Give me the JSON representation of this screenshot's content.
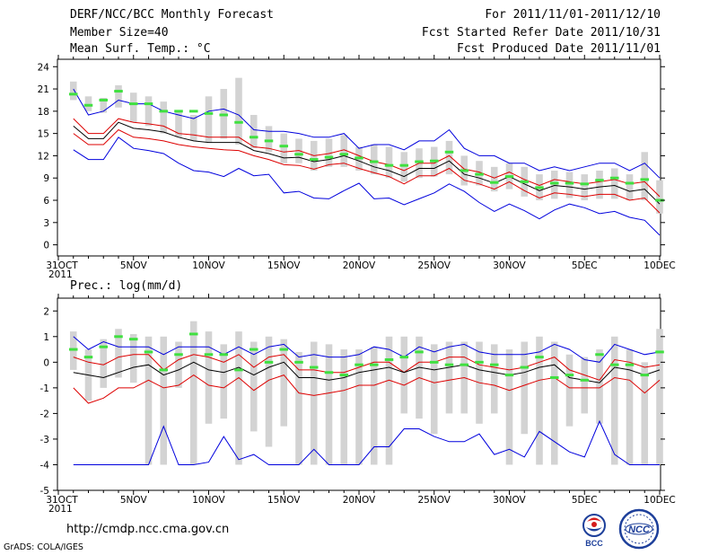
{
  "header": {
    "title": "DERF/NCC/BCC Monthly Forecast",
    "member_size": "Member Size=40",
    "variable": "Mean Surf. Temp.: °C",
    "period": "For 2011/11/01-2011/12/10",
    "fcst_started": "Fcst Started Refer Date 2011/10/31",
    "fcst_produced": "Fcst Produced Date 2011/11/01"
  },
  "footer": {
    "url": "http://cmdp.ncc.cma.gov.cn",
    "grads": "GrADS: COLA/IGES",
    "logo_bcc": "BCC",
    "logo_ncc": "NCC"
  },
  "colors": {
    "box": "#d3d3d3",
    "obs": "#40e040",
    "ens_max": "#0000dd",
    "ens_min": "#0000dd",
    "upper": "#dd0000",
    "lower": "#dd0000",
    "mean": "#000000"
  },
  "chart_data": [
    {
      "type": "line",
      "title": "Mean Surf. Temp.: °C",
      "x_tick_labels": [
        "31OCT",
        "5NOV",
        "10NOV",
        "15NOV",
        "20NOV",
        "25NOV",
        "30NOV",
        "5DEC",
        "10DEC"
      ],
      "x_year_label": "2011",
      "x_tick_days": [
        0,
        5,
        10,
        15,
        20,
        25,
        30,
        35,
        40
      ],
      "x_range": [
        0,
        40
      ],
      "ylim": [
        -1.5,
        25
      ],
      "y_ticks": [
        0,
        3,
        6,
        9,
        12,
        15,
        18,
        21,
        24
      ],
      "x": [
        1,
        2,
        3,
        4,
        5,
        6,
        7,
        8,
        9,
        10,
        11,
        12,
        13,
        14,
        15,
        16,
        17,
        18,
        19,
        20,
        21,
        22,
        23,
        24,
        25,
        26,
        27,
        28,
        29,
        30,
        31,
        32,
        33,
        34,
        35,
        36,
        37,
        38,
        39,
        40
      ],
      "series": [
        {
          "name": "ensemble max",
          "values": [
            21,
            17.5,
            18,
            19.5,
            19,
            19,
            18,
            17.5,
            17,
            18,
            18.3,
            17.5,
            15.5,
            15.3,
            15.3,
            15,
            14.5,
            14.5,
            15,
            13,
            13.5,
            13.5,
            12.8,
            14,
            14,
            15.5,
            13,
            12,
            12,
            11,
            11,
            10,
            10.5,
            10,
            10.5,
            11,
            11,
            10,
            11,
            9
          ]
        },
        {
          "name": "upper",
          "values": [
            17,
            15,
            15,
            17,
            16.5,
            16.3,
            16,
            15,
            14.8,
            14.5,
            14.5,
            14.5,
            13.2,
            13,
            12.5,
            12.7,
            12,
            12.3,
            12.8,
            12,
            11.2,
            10.8,
            10,
            11,
            11,
            12,
            10.2,
            9.8,
            9,
            9.8,
            8.8,
            8,
            8.8,
            8.5,
            8.2,
            8.5,
            8.8,
            8.2,
            8.5,
            6.5
          ]
        },
        {
          "name": "ensemble mean",
          "values": [
            16,
            14.3,
            14.3,
            16.5,
            15.7,
            15.5,
            15.2,
            14.5,
            14,
            13.8,
            13.8,
            13.8,
            12.7,
            12.3,
            11.7,
            11.8,
            11.2,
            11.5,
            12,
            11.3,
            10.5,
            10,
            9.2,
            10.3,
            10.3,
            11.3,
            9.5,
            9,
            8.3,
            9.2,
            8.2,
            7.3,
            8,
            7.8,
            7.5,
            7.8,
            8,
            7.2,
            7.5,
            5.5
          ]
        },
        {
          "name": "lower",
          "values": [
            15,
            13.5,
            13.5,
            15.5,
            14.5,
            14.3,
            14,
            13.5,
            13.2,
            13,
            12.8,
            12.7,
            12,
            11.5,
            10.8,
            10.7,
            10.2,
            10.8,
            11,
            10.3,
            9.7,
            9.2,
            8.2,
            9.3,
            9.3,
            10.3,
            8.7,
            8.2,
            7.5,
            8.5,
            7.3,
            6.3,
            7,
            6.8,
            6.5,
            6.8,
            6.8,
            6,
            6.3,
            4.3
          ]
        },
        {
          "name": "ensemble min",
          "values": [
            12.8,
            11.5,
            11.5,
            14.5,
            13,
            12.7,
            12.3,
            11,
            10,
            9.8,
            9.2,
            10.3,
            9.3,
            9.5,
            7,
            7.2,
            6.3,
            6.2,
            7.3,
            8.3,
            6.2,
            6.3,
            5.4,
            6.2,
            7,
            8.2,
            7.2,
            5.7,
            4.5,
            5.5,
            4.6,
            3.5,
            4.7,
            5.5,
            5,
            4.2,
            4.5,
            3.7,
            3.3,
            1.3
          ]
        },
        {
          "name": "obs",
          "values": [
            20.3,
            18.8,
            19.5,
            20.7,
            19,
            19,
            18,
            18,
            18,
            17.7,
            17.5,
            16.5,
            14.5,
            14,
            13.3,
            12.2,
            11.5,
            11.8,
            12.2,
            11.7,
            11.2,
            10.7,
            10.7,
            11.2,
            11.3,
            12.5,
            10,
            9.5,
            8.4,
            9.2,
            8.5,
            7.7,
            8.3,
            8.3,
            8.2,
            8.7,
            9,
            8.3,
            8.8,
            6
          ]
        }
      ],
      "boxes": [
        [
          19.5,
          22
        ],
        [
          18,
          20
        ],
        [
          17.8,
          19.8
        ],
        [
          18.5,
          21.5
        ],
        [
          16.5,
          20.5
        ],
        [
          16,
          20
        ],
        [
          15,
          19.3
        ],
        [
          14.5,
          18
        ],
        [
          14,
          17.5
        ],
        [
          13.8,
          20
        ],
        [
          14.3,
          21
        ],
        [
          13.5,
          22.5
        ],
        [
          13,
          17.5
        ],
        [
          12.5,
          16
        ],
        [
          11,
          15
        ],
        [
          11,
          14.3
        ],
        [
          10,
          14
        ],
        [
          10.5,
          14.3
        ],
        [
          10.5,
          14.8
        ],
        [
          10,
          13.2
        ],
        [
          9.5,
          13.5
        ],
        [
          9,
          13.2
        ],
        [
          8.5,
          12.5
        ],
        [
          9,
          13
        ],
        [
          9.2,
          13.2
        ],
        [
          9.5,
          14
        ],
        [
          8,
          12
        ],
        [
          8,
          11.3
        ],
        [
          7.2,
          10.5
        ],
        [
          7.5,
          11
        ],
        [
          6.5,
          10.5
        ],
        [
          6,
          9.5
        ],
        [
          6.2,
          10
        ],
        [
          6.3,
          9.8
        ],
        [
          6,
          9.5
        ],
        [
          6.2,
          10
        ],
        [
          6.2,
          10.3
        ],
        [
          6,
          9.5
        ],
        [
          6,
          12.5
        ],
        [
          4.2,
          8.7
        ]
      ]
    },
    {
      "type": "line",
      "title": "Prec.: log(mm/d)",
      "x_tick_labels": [
        "31OCT",
        "5NOV",
        "10NOV",
        "15NOV",
        "20NOV",
        "25NOV",
        "30NOV",
        "5DEC",
        "10DEC"
      ],
      "x_year_label": "2011",
      "x_tick_days": [
        0,
        5,
        10,
        15,
        20,
        25,
        30,
        35,
        40
      ],
      "x_range": [
        0,
        40
      ],
      "ylim": [
        -5,
        2.5
      ],
      "y_ticks": [
        -5,
        -4,
        -3,
        -2,
        -1,
        0,
        1,
        2
      ],
      "x": [
        1,
        2,
        3,
        4,
        5,
        6,
        7,
        8,
        9,
        10,
        11,
        12,
        13,
        14,
        15,
        16,
        17,
        18,
        19,
        20,
        21,
        22,
        23,
        24,
        25,
        26,
        27,
        28,
        29,
        30,
        31,
        32,
        33,
        34,
        35,
        36,
        37,
        38,
        39,
        40
      ],
      "series": [
        {
          "name": "ensemble max",
          "values": [
            1,
            0.5,
            0.8,
            0.6,
            0.6,
            0.6,
            0.3,
            0.6,
            0.6,
            0.6,
            0.3,
            0.6,
            0.3,
            0.6,
            0.7,
            0.2,
            0.3,
            0.2,
            0.2,
            0.3,
            0.6,
            0.5,
            0.2,
            0.6,
            0.4,
            0.6,
            0.7,
            0.4,
            0.3,
            0.3,
            0.3,
            0.4,
            0.7,
            0.5,
            0.1,
            0,
            0.7,
            0.5,
            0.3,
            0.4
          ]
        },
        {
          "name": "upper",
          "values": [
            0.2,
            0,
            -0.1,
            0.2,
            0.3,
            0.3,
            -0.3,
            0.1,
            0.3,
            0.2,
            0,
            0.3,
            -0.2,
            0.2,
            0.3,
            -0.3,
            -0.3,
            -0.4,
            -0.4,
            -0.2,
            0,
            0,
            -0.4,
            0,
            0,
            0.2,
            0.2,
            -0.1,
            -0.2,
            -0.3,
            -0.2,
            0,
            0.2,
            -0.3,
            -0.5,
            -0.7,
            0.1,
            0,
            -0.2,
            -0.1
          ]
        },
        {
          "name": "ensemble mean",
          "values": [
            -0.4,
            -0.5,
            -0.6,
            -0.4,
            -0.2,
            -0.1,
            -0.5,
            -0.3,
            0,
            -0.3,
            -0.4,
            -0.2,
            -0.5,
            -0.2,
            0,
            -0.6,
            -0.6,
            -0.7,
            -0.6,
            -0.4,
            -0.3,
            -0.2,
            -0.4,
            -0.2,
            -0.3,
            -0.2,
            -0.1,
            -0.3,
            -0.4,
            -0.5,
            -0.4,
            -0.2,
            -0.1,
            -0.6,
            -0.7,
            -0.8,
            -0.2,
            -0.3,
            -0.5,
            -0.3
          ]
        },
        {
          "name": "lower",
          "values": [
            -1,
            -1.6,
            -1.4,
            -1,
            -1,
            -0.7,
            -1,
            -0.9,
            -0.5,
            -0.9,
            -1,
            -0.6,
            -1.1,
            -0.7,
            -0.5,
            -1.2,
            -1.3,
            -1.2,
            -1.1,
            -0.9,
            -0.9,
            -0.7,
            -0.9,
            -0.6,
            -0.8,
            -0.7,
            -0.6,
            -0.8,
            -0.9,
            -1.1,
            -0.9,
            -0.7,
            -0.6,
            -1,
            -1,
            -1,
            -0.6,
            -0.7,
            -1.2,
            -0.7
          ]
        },
        {
          "name": "ensemble min",
          "values": [
            -4,
            -4,
            -4,
            -4,
            -4,
            -4,
            -2.5,
            -4,
            -4,
            -3.9,
            -2.9,
            -3.8,
            -3.6,
            -4,
            -4,
            -4,
            -3.4,
            -4,
            -4,
            -4,
            -3.3,
            -3.3,
            -2.6,
            -2.6,
            -2.9,
            -3.1,
            -3.1,
            -2.8,
            -3.6,
            -3.4,
            -3.7,
            -2.7,
            -3.1,
            -3.5,
            -3.7,
            -2.3,
            -3.6,
            -4,
            -4,
            -4
          ]
        },
        {
          "name": "obs",
          "values": [
            0.5,
            0.2,
            0.6,
            1,
            0.9,
            0.4,
            -0.3,
            0.3,
            1.1,
            0.3,
            0.3,
            -0.3,
            0.5,
            0,
            0.5,
            0,
            -0.2,
            -0.4,
            -0.5,
            -0.1,
            -0.1,
            0.1,
            0.2,
            0.4,
            0,
            -0.1,
            -0.1,
            0,
            -0.1,
            -0.5,
            -0.2,
            0.2,
            -0.6,
            -0.5,
            -0.7,
            0.3,
            -0.1,
            -0.1,
            -0.5,
            0.4
          ]
        }
      ],
      "boxes": [
        [
          -0.3,
          1.2
        ],
        [
          -1.5,
          0.5
        ],
        [
          -1,
          0.9
        ],
        [
          -0.6,
          1.3
        ],
        [
          -0.8,
          1.1
        ],
        [
          -4,
          1
        ],
        [
          -4,
          1
        ],
        [
          -1,
          0.8
        ],
        [
          -4,
          1.6
        ],
        [
          -2.4,
          1.2
        ],
        [
          -2.2,
          0.7
        ],
        [
          -4,
          1.2
        ],
        [
          -2.7,
          0.8
        ],
        [
          -3.3,
          1
        ],
        [
          -2.5,
          0.9
        ],
        [
          -4,
          0.4
        ],
        [
          -4,
          0.8
        ],
        [
          -4,
          0.7
        ],
        [
          -4,
          0.5
        ],
        [
          -4,
          0.5
        ],
        [
          -4,
          0.6
        ],
        [
          -4,
          1
        ],
        [
          -2,
          1
        ],
        [
          -2.2,
          1
        ],
        [
          -2.8,
          0.7
        ],
        [
          -2,
          0.8
        ],
        [
          -2,
          0.8
        ],
        [
          -2.4,
          0.8
        ],
        [
          -2,
          0.7
        ],
        [
          -4,
          0.5
        ],
        [
          -2.8,
          0.8
        ],
        [
          -4,
          1
        ],
        [
          -4,
          0.8
        ],
        [
          -2.5,
          0.3
        ],
        [
          -2,
          0.2
        ],
        [
          -2.4,
          0.5
        ],
        [
          -4,
          1
        ],
        [
          -4,
          0.5
        ],
        [
          -4,
          0
        ],
        [
          -4,
          1.3
        ]
      ]
    }
  ]
}
